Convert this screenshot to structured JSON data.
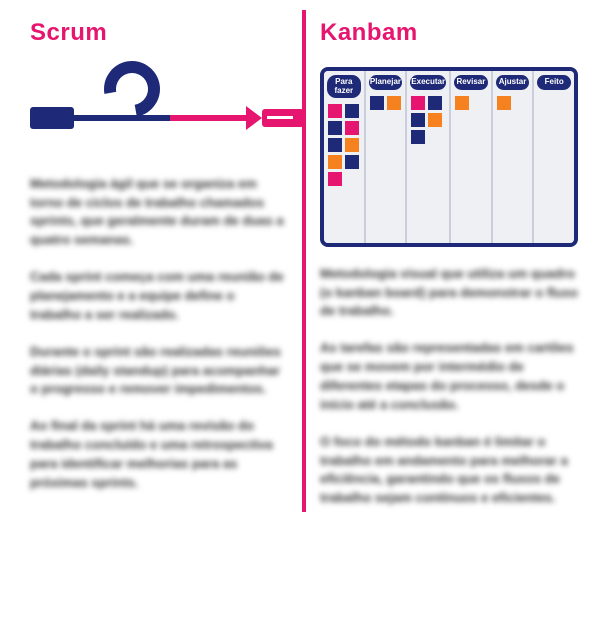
{
  "scrum": {
    "title": "Scrum",
    "paragraphs": [
      "Metodologia ágil que se organiza em torno de ciclos de trabalho chamados sprints, que geralmente duram de duas a quatro semanas.",
      "Cada sprint começa com uma reunião de planejamento e a equipe define o trabalho a ser realizado.",
      "Durante o sprint são realizadas reuniões diárias (daily standup) para acompanhar o progresso e remover impedimentos.",
      "Ao final da sprint há uma revisão do trabalho concluído e uma retrospectiva para identificar melhorias para as próximas sprints."
    ],
    "colors": {
      "navy": "#1e2a78",
      "pink": "#e6156f"
    }
  },
  "kanban": {
    "title": "Kanbam",
    "columns": [
      {
        "name": "Para fazer",
        "cards": [
          "#e6156f",
          "#1e2a78",
          "#1e2a78",
          "#e6156f",
          "#1e2a78",
          "#f5821f",
          "#f5821f",
          "#1e2a78",
          "#e6156f"
        ]
      },
      {
        "name": "Planejar",
        "cards": [
          "#1e2a78",
          "#f5821f"
        ]
      },
      {
        "name": "Executar",
        "cards": [
          "#e6156f",
          "#1e2a78",
          "#1e2a78",
          "#f5821f",
          "#1e2a78"
        ]
      },
      {
        "name": "Revisar",
        "cards": [
          "#f5821f"
        ]
      },
      {
        "name": "Ajustar",
        "cards": [
          "#f5821f"
        ]
      },
      {
        "name": "Feito",
        "cards": []
      }
    ],
    "paragraphs": [
      "Metodologia visual que utiliza um quadro (o kanban board) para demonstrar o fluxo de trabalho.",
      "As tarefas são representadas em cartões que se movem por intermédio de diferentes etapas do processo, desde o início até a conclusão.",
      "O foco do método kanban é limitar o trabalho em andamento para melhorar a eficiência, garantindo que os fluxos de trabalho sejam contínuos e eficientes."
    ],
    "colors": {
      "navy": "#1e2a78",
      "pink": "#e6156f",
      "orange": "#f5821f",
      "col_bg": "#eef0f4"
    }
  }
}
